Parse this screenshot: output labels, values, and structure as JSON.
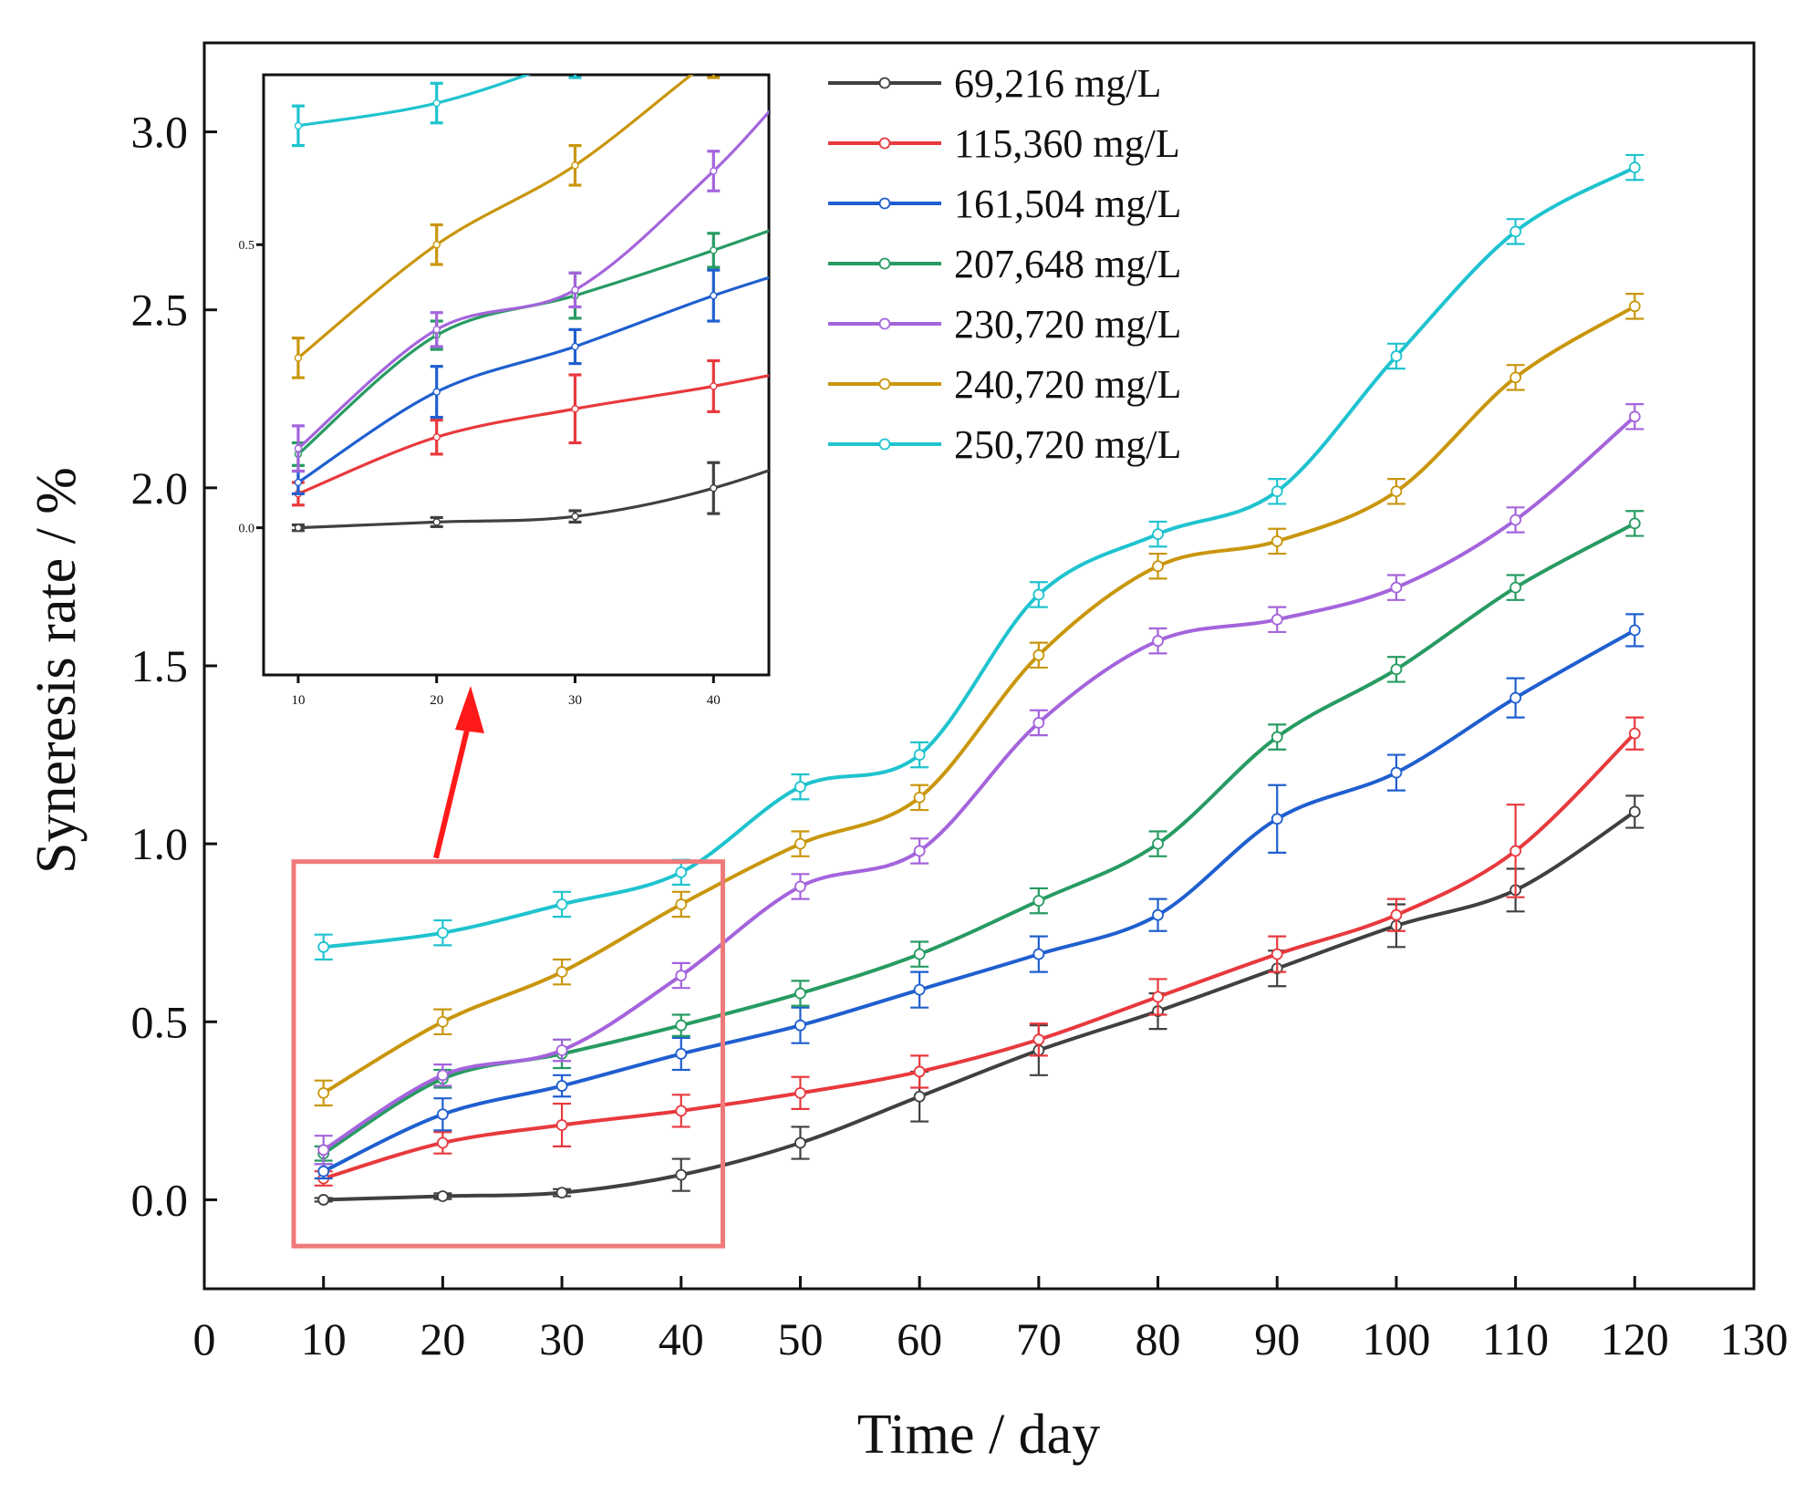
{
  "chart_data": {
    "type": "line",
    "xlabel": "Time / day",
    "ylabel": "Syneresis rate / %",
    "xlim": [
      0,
      130
    ],
    "ylim": [
      -0.25,
      3.25
    ],
    "xticks": [
      0,
      10,
      20,
      30,
      40,
      50,
      60,
      70,
      80,
      90,
      100,
      110,
      120,
      130
    ],
    "xtick_labels": [
      "0",
      "10",
      "20",
      "30",
      "40",
      "50",
      "60",
      "70",
      "80",
      "90",
      "100",
      "110",
      "120",
      "130"
    ],
    "yticks": [
      0.0,
      0.5,
      1.0,
      1.5,
      2.0,
      2.5,
      3.0
    ],
    "ytick_labels": [
      "0.0",
      "0.5",
      "1.0",
      "1.5",
      "2.0",
      "2.5",
      "3.0"
    ],
    "legend_position": "top-right",
    "x": [
      10,
      20,
      30,
      40,
      50,
      60,
      70,
      80,
      90,
      100,
      110,
      120
    ],
    "series": [
      {
        "name": "69,216 mg/L",
        "color": "#404040",
        "values": [
          0.0,
          0.01,
          0.02,
          0.07,
          0.16,
          0.29,
          0.42,
          0.53,
          0.65,
          0.77,
          0.87,
          1.09
        ],
        "errors": [
          0.005,
          0.008,
          0.01,
          0.045,
          0.045,
          0.07,
          0.07,
          0.05,
          0.05,
          0.06,
          0.06,
          0.045
        ]
      },
      {
        "name": "115,360 mg/L",
        "color": "#e8393d",
        "values": [
          0.06,
          0.16,
          0.21,
          0.25,
          0.3,
          0.36,
          0.45,
          0.57,
          0.69,
          0.8,
          0.98,
          1.31
        ],
        "errors": [
          0.02,
          0.03,
          0.06,
          0.045,
          0.045,
          0.045,
          0.045,
          0.05,
          0.05,
          0.045,
          0.13,
          0.045
        ]
      },
      {
        "name": "161,504 mg/L",
        "color": "#1f5fcf",
        "values": [
          0.08,
          0.24,
          0.32,
          0.41,
          0.49,
          0.59,
          0.69,
          0.8,
          1.07,
          1.2,
          1.41,
          1.6
        ],
        "errors": [
          0.02,
          0.045,
          0.03,
          0.045,
          0.05,
          0.05,
          0.05,
          0.045,
          0.095,
          0.05,
          0.055,
          0.045
        ]
      },
      {
        "name": "207,648 mg/L",
        "color": "#279b62",
        "values": [
          0.13,
          0.34,
          0.41,
          0.49,
          0.58,
          0.69,
          0.84,
          1.0,
          1.3,
          1.49,
          1.72,
          1.9
        ],
        "errors": [
          0.02,
          0.025,
          0.04,
          0.03,
          0.035,
          0.035,
          0.035,
          0.035,
          0.035,
          0.035,
          0.035,
          0.035
        ]
      },
      {
        "name": "230,720 mg/L",
        "color": "#a464dc",
        "values": [
          0.14,
          0.35,
          0.42,
          0.63,
          0.88,
          0.98,
          1.34,
          1.57,
          1.63,
          1.72,
          1.91,
          2.2
        ],
        "errors": [
          0.04,
          0.03,
          0.03,
          0.035,
          0.035,
          0.035,
          0.035,
          0.035,
          0.035,
          0.035,
          0.035,
          0.035
        ]
      },
      {
        "name": "240,720 mg/L",
        "color": "#c9960c",
        "values": [
          0.3,
          0.5,
          0.64,
          0.83,
          1.0,
          1.13,
          1.53,
          1.78,
          1.85,
          1.99,
          2.31,
          2.51
        ],
        "errors": [
          0.035,
          0.035,
          0.035,
          0.035,
          0.035,
          0.035,
          0.035,
          0.035,
          0.035,
          0.035,
          0.035,
          0.035
        ]
      },
      {
        "name": "250,720 mg/L",
        "color": "#1fc3cf",
        "values": [
          0.71,
          0.75,
          0.83,
          0.92,
          1.16,
          1.25,
          1.7,
          1.87,
          1.99,
          2.37,
          2.72,
          2.9
        ],
        "errors": [
          0.035,
          0.035,
          0.035,
          0.035,
          0.035,
          0.035,
          0.035,
          0.035,
          0.035,
          0.035,
          0.035,
          0.035
        ]
      }
    ],
    "zoom_box": {
      "x_range": [
        7.5,
        43.5
      ],
      "y_range": [
        -0.13,
        0.95
      ]
    },
    "inset": {
      "xlim": [
        7.5,
        44
      ],
      "ylim": [
        -0.26,
        0.8
      ],
      "xticks": [
        10,
        20,
        30,
        40
      ],
      "xtick_labels": [
        "10",
        "20",
        "30",
        "40"
      ],
      "yticks": [
        0.0,
        0.5
      ],
      "ytick_labels": [
        "0.0",
        "0.5"
      ]
    }
  }
}
